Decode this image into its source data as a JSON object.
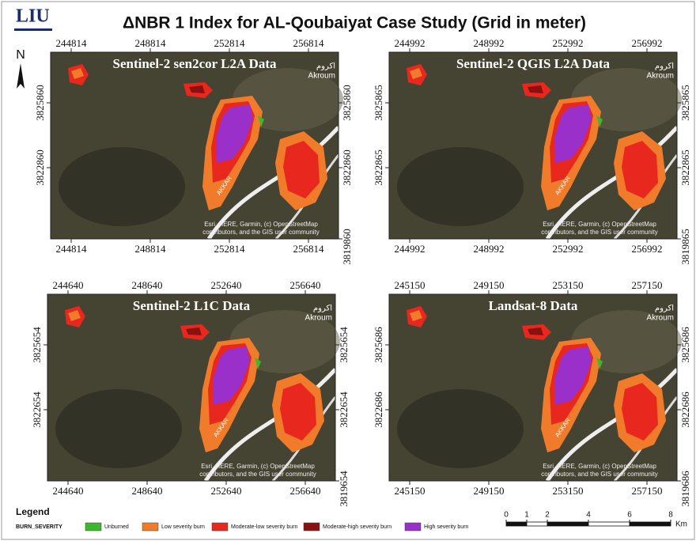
{
  "header": {
    "logo": "LIU",
    "title": "ΔNBR 1 Index for AL-Qoubaiyat Case Study (Grid in meter)",
    "north": "N"
  },
  "map_labels": {
    "place": "Akroum",
    "place_arabic": "اكروم",
    "road": "AKKAR",
    "attribution_line1": "Esri, HERE, Garmin, (c) OpenStreetMap",
    "attribution_line2": "contributors, and the GIS user community"
  },
  "panels": [
    {
      "title": "Sentinel-2 sen2cor  L2A Data",
      "x_ticks": [
        244814,
        248814,
        252814,
        256814
      ],
      "y_ticks": [
        3825860,
        3822860,
        3819860
      ]
    },
    {
      "title": "Sentinel-2  QGIS L2A Data",
      "x_ticks": [
        244992,
        248992,
        252992,
        256992
      ],
      "y_ticks": [
        3825865,
        3822865,
        3819865
      ]
    },
    {
      "title": "Sentinel-2  L1C Data",
      "x_ticks": [
        244640,
        248640,
        252640,
        256640
      ],
      "y_ticks": [
        3825654,
        3822654,
        3819654
      ]
    },
    {
      "title": "Landsat-8 Data",
      "x_ticks": [
        245150,
        249150,
        253150,
        257150
      ],
      "y_ticks": [
        3825686,
        3822686,
        3819686
      ]
    }
  ],
  "legend": {
    "title": "Legend",
    "field": "BURN_SEVERITY",
    "items": [
      {
        "label": "Unburned",
        "color": "#3cb82c"
      },
      {
        "label": "Low severity burn",
        "color": "#f07b2a"
      },
      {
        "label": "Moderate-low severity burn",
        "color": "#e8281e"
      },
      {
        "label": "Moderate-high severity burn",
        "color": "#8b1010"
      },
      {
        "label": "High severity burn",
        "color": "#9a2fc9"
      }
    ]
  },
  "scale_bar": {
    "ticks": [
      0,
      1,
      2,
      4,
      6,
      8
    ],
    "unit": "Km"
  }
}
